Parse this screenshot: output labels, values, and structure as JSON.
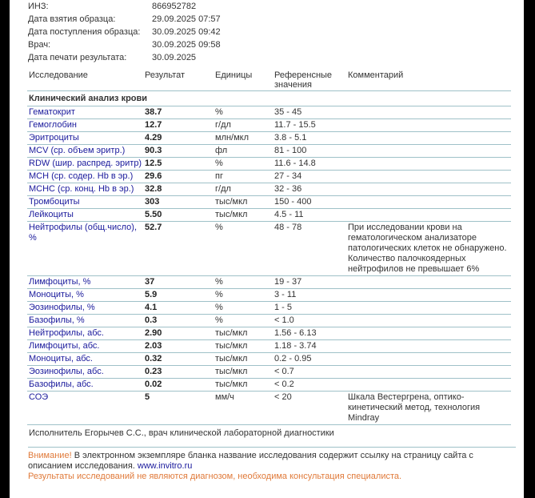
{
  "info": [
    {
      "label": "ИНЗ:",
      "value": "866952782"
    },
    {
      "label": "Дата взятия образца:",
      "value": "29.09.2025 07:57"
    },
    {
      "label": "Дата поступления образца:",
      "value": "30.09.2025 09:42"
    },
    {
      "label": "Врач:",
      "value": "30.09.2025 09:58"
    },
    {
      "label": "Дата печати результата:",
      "value": "30.09.2025"
    }
  ],
  "headers": {
    "test": "Исследование",
    "result": "Результат",
    "units": "Единицы",
    "ref": "Референсные значения",
    "comment": "Комментарий"
  },
  "section": "Клинический анализ крови",
  "rows": [
    {
      "name": "Гематокрит",
      "result": "38.7",
      "units": "%",
      "ref": "35 - 45",
      "comment": ""
    },
    {
      "name": "Гемоглобин",
      "result": "12.7",
      "units": "г/дл",
      "ref": "11.7 - 15.5",
      "comment": ""
    },
    {
      "name": "Эритроциты",
      "result": "4.29",
      "units": "млн/мкл",
      "ref": "3.8 - 5.1",
      "comment": ""
    },
    {
      "name": "MCV (ср. объем эритр.)",
      "result": "90.3",
      "units": "фл",
      "ref": "81 - 100",
      "comment": ""
    },
    {
      "name": "RDW (шир. распред. эритр)",
      "result": "12.5",
      "units": "%",
      "ref": "11.6 - 14.8",
      "comment": ""
    },
    {
      "name": "MCH (ср. содер. Hb в эр.)",
      "result": "29.6",
      "units": "пг",
      "ref": "27 - 34",
      "comment": ""
    },
    {
      "name": "MCHC (ср. конц. Hb в эр.)",
      "result": "32.8",
      "units": "г/дл",
      "ref": "32 - 36",
      "comment": ""
    },
    {
      "name": "Тромбоциты",
      "result": "303",
      "units": "тыс/мкл",
      "ref": "150 - 400",
      "comment": ""
    },
    {
      "name": "Лейкоциты",
      "result": "5.50",
      "units": "тыс/мкл",
      "ref": "4.5 - 11",
      "comment": ""
    },
    {
      "name": "Нейтрофилы (общ.число), %",
      "result": "52.7",
      "units": "%",
      "ref": "48 - 78",
      "comment": "При исследовании крови на гематологическом анализаторе патологических клеток не обнаружено. Количество палочкоядерных нейтрофилов не превышает 6%"
    },
    {
      "name": "Лимфоциты, %",
      "result": "37",
      "units": "%",
      "ref": "19 - 37",
      "comment": ""
    },
    {
      "name": "Моноциты, %",
      "result": "5.9",
      "units": "%",
      "ref": "3 - 11",
      "comment": ""
    },
    {
      "name": "Эозинофилы, %",
      "result": "4.1",
      "units": "%",
      "ref": "1 - 5",
      "comment": ""
    },
    {
      "name": "Базофилы, %",
      "result": "0.3",
      "units": "%",
      "ref": "< 1.0",
      "comment": ""
    },
    {
      "name": "Нейтрофилы, абс.",
      "result": "2.90",
      "units": "тыс/мкл",
      "ref": "1.56 - 6.13",
      "comment": ""
    },
    {
      "name": "Лимфоциты, абс.",
      "result": "2.03",
      "units": "тыс/мкл",
      "ref": "1.18 - 3.74",
      "comment": ""
    },
    {
      "name": "Моноциты, абс.",
      "result": "0.32",
      "units": "тыс/мкл",
      "ref": "0.2 - 0.95",
      "comment": ""
    },
    {
      "name": "Эозинофилы, абс.",
      "result": "0.23",
      "units": "тыс/мкл",
      "ref": "< 0.7",
      "comment": ""
    },
    {
      "name": "Базофилы, абс.",
      "result": "0.02",
      "units": "тыс/мкл",
      "ref": "< 0.2",
      "comment": ""
    },
    {
      "name": "СОЭ",
      "result": "5",
      "units": "мм/ч",
      "ref": "< 20",
      "comment": "Шкала Вестергрена, оптико-кинетический метод, технология Mindray"
    }
  ],
  "executor": "Исполнитель Егорычев С.С., врач клинической лабораторной диагностики",
  "footer": {
    "attention": "Внимание!",
    "notice": " В электронном экземпляре бланка название исследования содержит ссылку на страницу сайта с описанием исследования. ",
    "link": "www.invitro.ru",
    "disclaimer": "Результаты исследований не являются диагнозом, необходима консультация специалиста."
  },
  "colors": {
    "name": "#1a1a9c",
    "divider": "#9fc1c8",
    "warning": "#e07a3a"
  }
}
